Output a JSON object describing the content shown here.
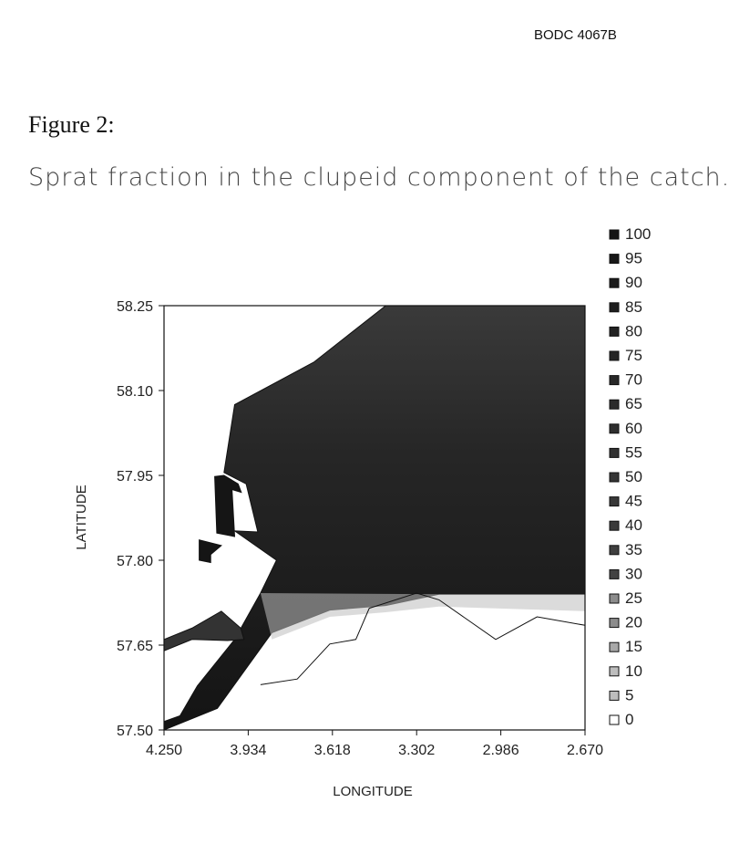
{
  "doc_id": "BODC 4067B",
  "figure_heading": "Figure 2:",
  "figure_caption": "Sprat fraction in the clupeid component of the catch.",
  "chart_data": {
    "type": "heatmap",
    "xlabel": "LONGITUDE",
    "ylabel": "LATITUDE",
    "xlim": [
      4.25,
      2.67
    ],
    "ylim": [
      57.5,
      58.25
    ],
    "x_ticks": [
      "4.250",
      "3.934",
      "3.618",
      "3.302",
      "2.986",
      "2.670"
    ],
    "y_ticks": [
      "57.50",
      "57.65",
      "57.80",
      "57.95",
      "58.10",
      "58.25"
    ],
    "legend_levels": [
      "100",
      "95",
      "90",
      "85",
      "80",
      "75",
      "70",
      "65",
      "60",
      "55",
      "50",
      "45",
      "40",
      "35",
      "30",
      "25",
      "20",
      "15",
      "10",
      "5",
      "0"
    ],
    "legend_placement": "right",
    "colors": {
      "high": "#151515",
      "mid": "#333333",
      "low": "#bdbdbd",
      "zero": "#ffffff"
    },
    "regions": [
      {
        "name": "main",
        "value": 95,
        "boundary": [
          [
            3.418,
            58.25
          ],
          [
            2.67,
            58.25
          ],
          [
            2.67,
            57.74
          ],
          [
            3.218,
            57.74
          ],
          [
            3.418,
            57.72
          ],
          [
            3.628,
            57.712
          ],
          [
            3.845,
            57.672
          ],
          [
            4.05,
            57.538
          ],
          [
            4.25,
            57.5
          ],
          [
            4.25,
            57.515
          ],
          [
            4.19,
            57.525
          ],
          [
            4.125,
            57.578
          ],
          [
            3.985,
            57.66
          ],
          [
            3.888,
            57.742
          ],
          [
            3.828,
            57.8
          ],
          [
            3.985,
            57.852
          ],
          [
            3.898,
            57.85
          ],
          [
            3.942,
            57.935
          ],
          [
            4.025,
            57.955
          ],
          [
            3.985,
            58.075
          ],
          [
            3.688,
            58.15
          ],
          [
            3.418,
            58.25
          ]
        ]
      },
      {
        "name": "island-a",
        "value": 95,
        "boundary": [
          [
            4.06,
            57.948
          ],
          [
            4.025,
            57.95
          ],
          [
            3.972,
            57.935
          ],
          [
            3.96,
            57.92
          ],
          [
            3.995,
            57.925
          ],
          [
            3.985,
            57.842
          ],
          [
            4.052,
            57.848
          ],
          [
            4.06,
            57.948
          ]
        ]
      },
      {
        "name": "island-b",
        "value": 95,
        "boundary": [
          [
            4.118,
            57.836
          ],
          [
            4.035,
            57.826
          ],
          [
            4.075,
            57.81
          ],
          [
            4.075,
            57.796
          ],
          [
            4.118,
            57.8
          ],
          [
            4.118,
            57.836
          ]
        ]
      },
      {
        "name": "island-c",
        "value": 90,
        "boundary": [
          [
            4.25,
            57.66
          ],
          [
            4.145,
            57.68
          ],
          [
            4.035,
            57.71
          ],
          [
            3.962,
            57.68
          ],
          [
            3.95,
            57.66
          ],
          [
            4.012,
            57.658
          ],
          [
            4.145,
            57.66
          ],
          [
            4.25,
            57.64
          ],
          [
            4.25,
            57.66
          ]
        ]
      }
    ]
  }
}
